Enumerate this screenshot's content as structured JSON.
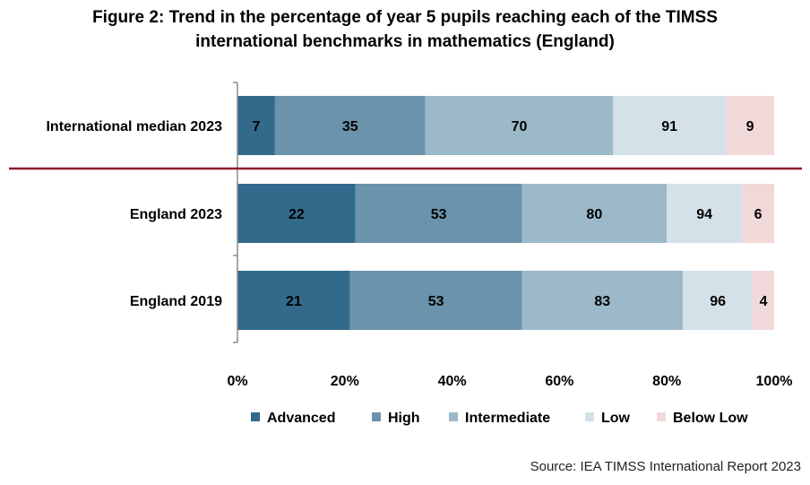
{
  "title_line1": "Figure 2: Trend in the percentage of year 5 pupils reaching each of the TIMSS",
  "title_line2": "international benchmarks in mathematics (England)",
  "source": "Source: IEA TIMSS International Report 2023",
  "chart_data": {
    "type": "bar",
    "orientation": "horizontal",
    "stacked": true,
    "categories": [
      "International median 2023",
      "England 2023",
      "England 2019"
    ],
    "series": [
      {
        "name": "Advanced",
        "color": "#336a8c",
        "cumulative": [
          7,
          22,
          21
        ],
        "labels": [
          "7",
          "22",
          "21"
        ]
      },
      {
        "name": "High",
        "color": "#6b93ab",
        "cumulative": [
          35,
          53,
          53
        ],
        "labels": [
          "35",
          "53",
          "53"
        ]
      },
      {
        "name": "Intermediate",
        "color": "#9cb9c9",
        "cumulative": [
          70,
          80,
          83
        ],
        "labels": [
          "70",
          "80",
          "83"
        ]
      },
      {
        "name": "Low",
        "color": "#d5e1e8",
        "cumulative": [
          91,
          94,
          96
        ],
        "labels": [
          "91",
          "94",
          "96"
        ]
      },
      {
        "name": "Below Low",
        "color": "#f2d9d9",
        "cumulative": [
          100,
          100,
          100
        ],
        "labels": [
          "9",
          "6",
          "4"
        ]
      }
    ],
    "xlim": [
      0,
      100
    ],
    "x_ticks": [
      "0%",
      "20%",
      "40%",
      "60%",
      "80%",
      "100%"
    ],
    "grid": false,
    "legend_position": "bottom",
    "separator_color": "#8b1e2d"
  }
}
